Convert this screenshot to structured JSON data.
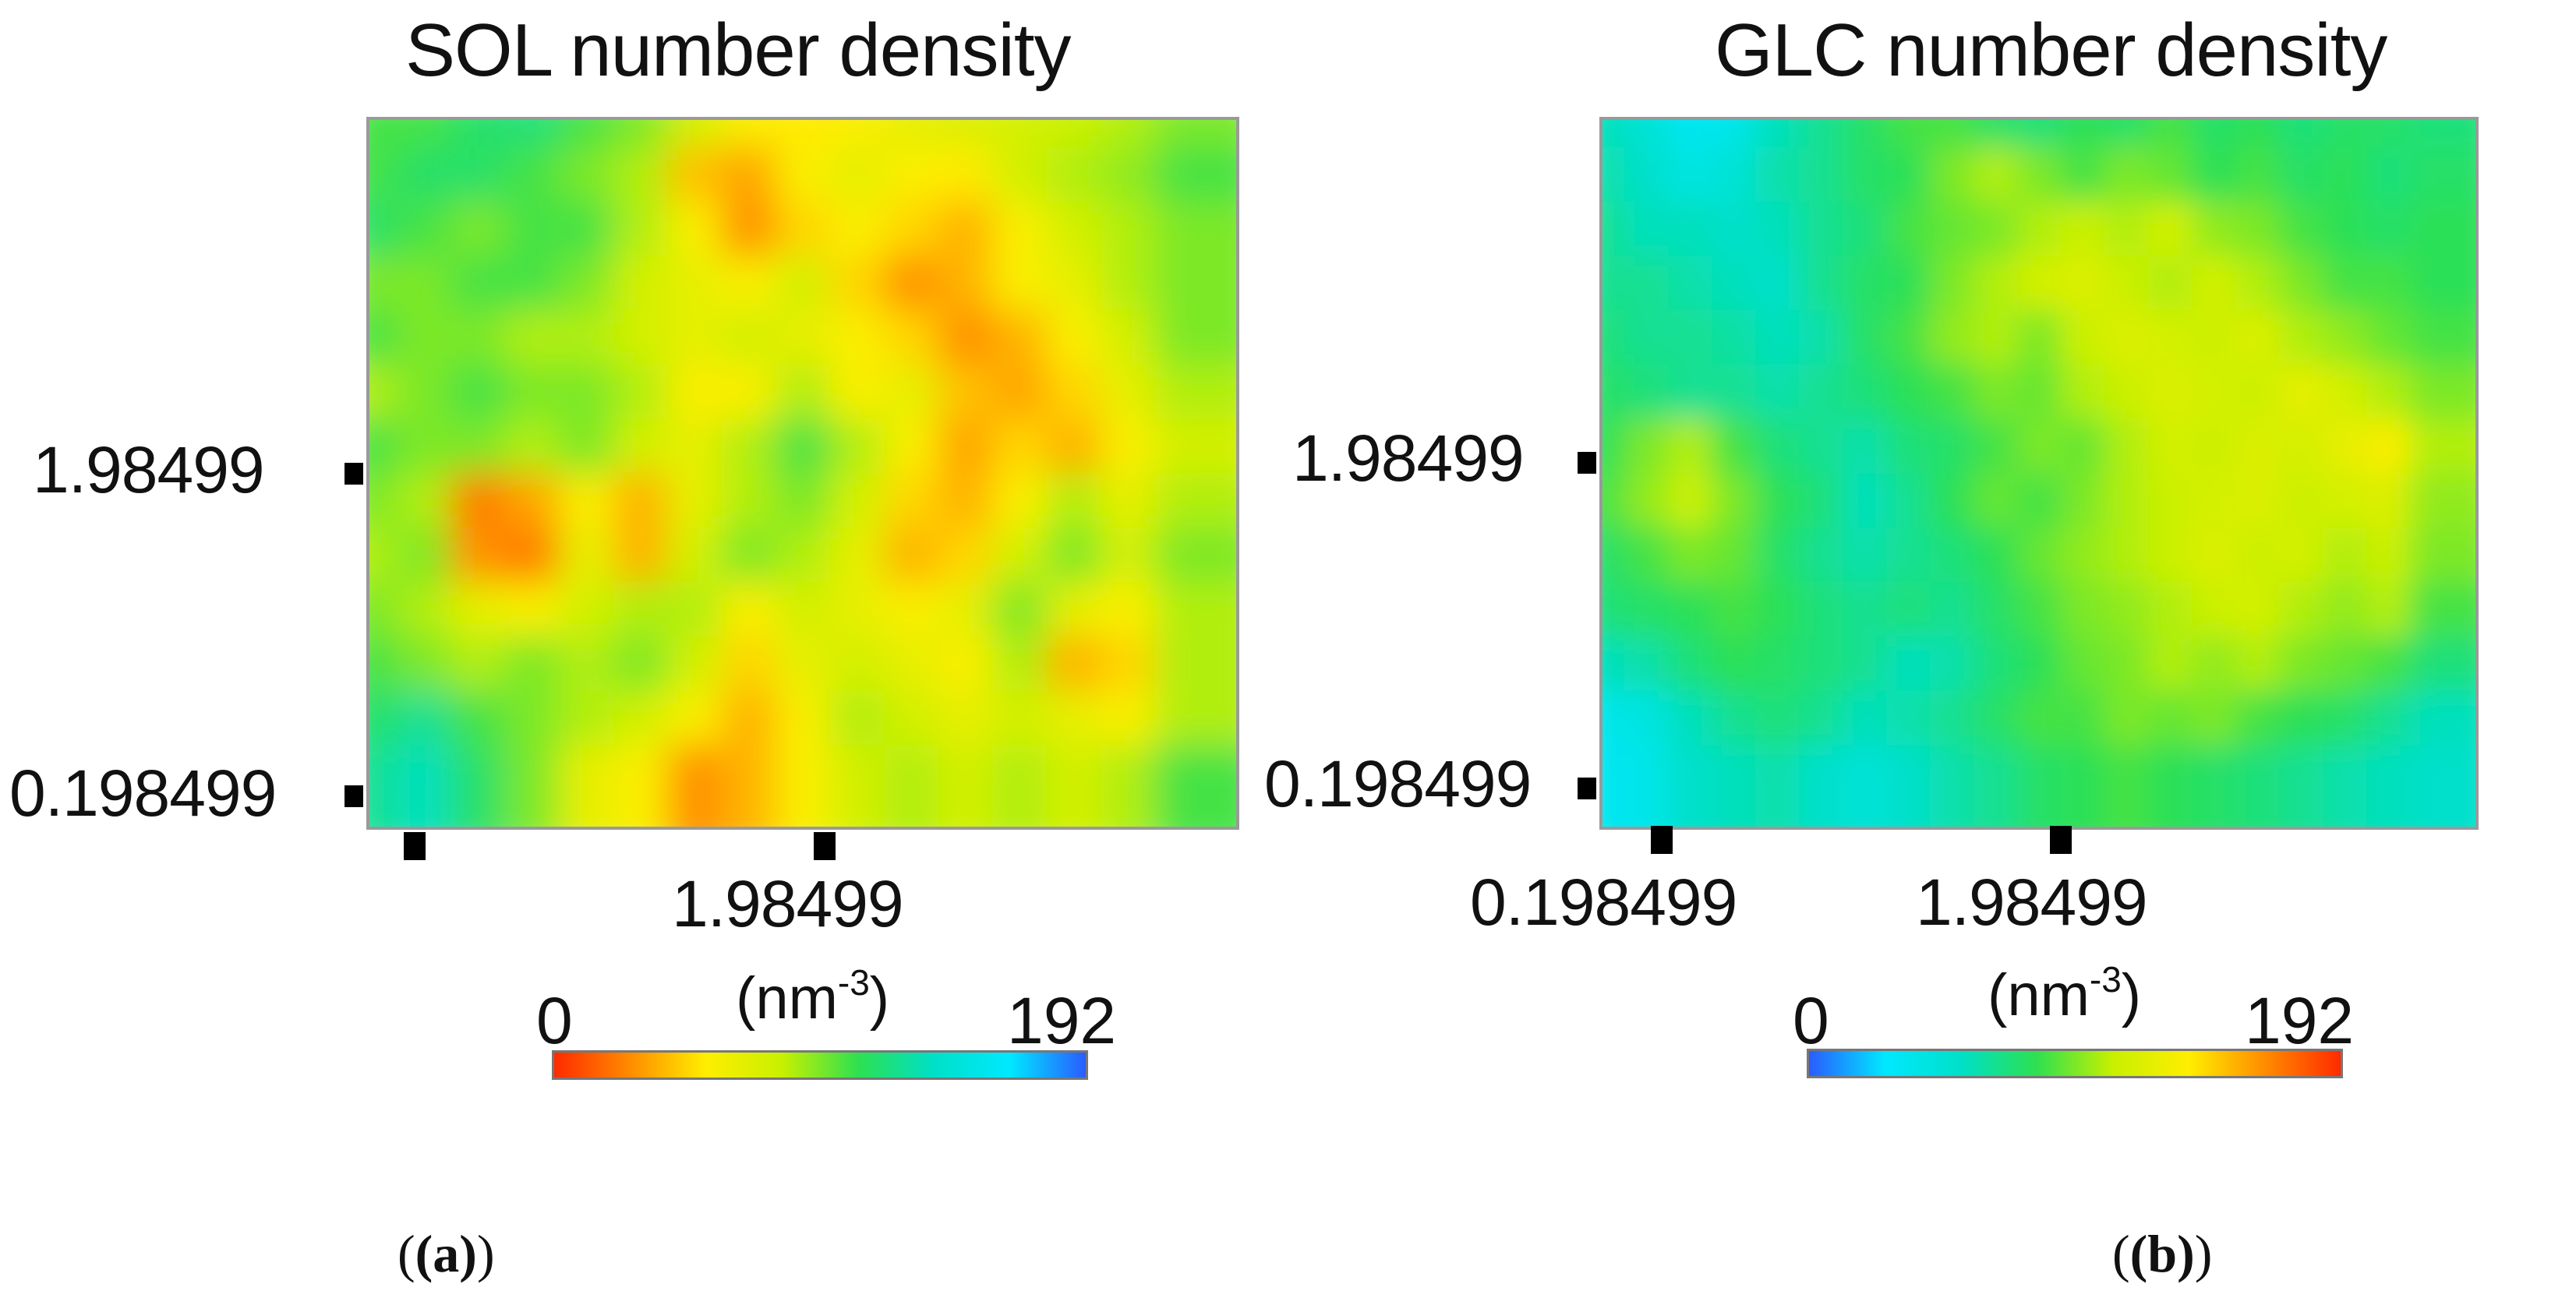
{
  "chart_data": [
    {
      "type": "heatmap",
      "panel": "(a)",
      "title": "SOL number density",
      "y_ticks": [
        "1.98499",
        "0.198499"
      ],
      "x_ticks": [
        "",
        "1.98499"
      ],
      "colorbar": {
        "unit": "nm",
        "unit_exp": "-3",
        "min_label": "0",
        "max_label": "192",
        "range": [
          0,
          192
        ],
        "colors": [
          "#ff2a00",
          "#ff8c00",
          "#ffee00",
          "#c8f000",
          "#2ee050",
          "#00e0c8",
          "#00e8ff",
          "#2a5cff"
        ]
      },
      "grid": [
        [
          0.55,
          0.55,
          0.6,
          0.62,
          0.55,
          0.5,
          0.4,
          0.3,
          0.28,
          0.3,
          0.35,
          0.38,
          0.4,
          0.42,
          0.45,
          0.5
        ],
        [
          0.55,
          0.6,
          0.6,
          0.55,
          0.5,
          0.45,
          0.22,
          0.18,
          0.3,
          0.35,
          0.3,
          0.28,
          0.4,
          0.45,
          0.48,
          0.55
        ],
        [
          0.6,
          0.55,
          0.5,
          0.55,
          0.55,
          0.45,
          0.3,
          0.15,
          0.25,
          0.3,
          0.25,
          0.2,
          0.3,
          0.4,
          0.45,
          0.5
        ],
        [
          0.5,
          0.5,
          0.55,
          0.55,
          0.5,
          0.4,
          0.35,
          0.3,
          0.4,
          0.25,
          0.15,
          0.2,
          0.3,
          0.35,
          0.45,
          0.5
        ],
        [
          0.55,
          0.5,
          0.5,
          0.45,
          0.45,
          0.4,
          0.35,
          0.4,
          0.35,
          0.3,
          0.25,
          0.15,
          0.2,
          0.3,
          0.4,
          0.5
        ],
        [
          0.45,
          0.5,
          0.55,
          0.5,
          0.5,
          0.45,
          0.3,
          0.3,
          0.45,
          0.3,
          0.35,
          0.22,
          0.18,
          0.25,
          0.35,
          0.45
        ],
        [
          0.55,
          0.5,
          0.5,
          0.45,
          0.5,
          0.4,
          0.35,
          0.45,
          0.55,
          0.45,
          0.3,
          0.18,
          0.25,
          0.2,
          0.3,
          0.4
        ],
        [
          0.5,
          0.45,
          0.12,
          0.18,
          0.3,
          0.2,
          0.35,
          0.45,
          0.5,
          0.4,
          0.25,
          0.2,
          0.3,
          0.45,
          0.35,
          0.45
        ],
        [
          0.45,
          0.5,
          0.15,
          0.12,
          0.35,
          0.2,
          0.4,
          0.5,
          0.45,
          0.35,
          0.2,
          0.25,
          0.4,
          0.5,
          0.4,
          0.5
        ],
        [
          0.5,
          0.45,
          0.35,
          0.3,
          0.4,
          0.45,
          0.45,
          0.3,
          0.4,
          0.35,
          0.3,
          0.35,
          0.5,
          0.35,
          0.3,
          0.45
        ],
        [
          0.55,
          0.5,
          0.45,
          0.5,
          0.45,
          0.5,
          0.4,
          0.25,
          0.35,
          0.4,
          0.35,
          0.3,
          0.45,
          0.2,
          0.25,
          0.45
        ],
        [
          0.6,
          0.65,
          0.55,
          0.5,
          0.45,
          0.4,
          0.3,
          0.2,
          0.3,
          0.45,
          0.4,
          0.35,
          0.4,
          0.35,
          0.3,
          0.45
        ],
        [
          0.65,
          0.7,
          0.6,
          0.5,
          0.35,
          0.3,
          0.15,
          0.2,
          0.3,
          0.4,
          0.45,
          0.4,
          0.45,
          0.4,
          0.45,
          0.55
        ]
      ]
    },
    {
      "type": "heatmap",
      "panel": "(b)",
      "title": "GLC number density",
      "y_ticks": [
        "1.98499",
        "0.198499"
      ],
      "x_ticks": [
        "0.198499",
        "1.98499"
      ],
      "colorbar": {
        "unit": "nm",
        "unit_exp": "-3",
        "min_label": "0",
        "max_label": "192",
        "range": [
          0,
          192
        ],
        "colors": [
          "#2a5cff",
          "#00e8ff",
          "#00e0c8",
          "#2ee050",
          "#c8f000",
          "#ffee00",
          "#ff8c00",
          "#ff2a00"
        ]
      },
      "grid": [
        [
          0.3,
          0.25,
          0.18,
          0.2,
          0.3,
          0.35,
          0.4,
          0.45,
          0.45,
          0.4,
          0.38,
          0.42,
          0.4,
          0.45,
          0.4,
          0.42,
          0.38,
          0.4,
          0.4,
          0.38
        ],
        [
          0.32,
          0.28,
          0.22,
          0.25,
          0.32,
          0.35,
          0.4,
          0.42,
          0.5,
          0.55,
          0.5,
          0.45,
          0.5,
          0.48,
          0.42,
          0.45,
          0.4,
          0.42,
          0.38,
          0.4
        ],
        [
          0.35,
          0.3,
          0.3,
          0.28,
          0.3,
          0.35,
          0.38,
          0.45,
          0.48,
          0.5,
          0.55,
          0.58,
          0.55,
          0.6,
          0.52,
          0.5,
          0.45,
          0.42,
          0.4,
          0.42
        ],
        [
          0.35,
          0.35,
          0.32,
          0.3,
          0.28,
          0.35,
          0.4,
          0.42,
          0.5,
          0.55,
          0.6,
          0.62,
          0.58,
          0.55,
          0.6,
          0.55,
          0.5,
          0.45,
          0.45,
          0.42
        ],
        [
          0.38,
          0.35,
          0.35,
          0.33,
          0.3,
          0.32,
          0.4,
          0.45,
          0.52,
          0.55,
          0.5,
          0.58,
          0.62,
          0.6,
          0.58,
          0.62,
          0.55,
          0.52,
          0.48,
          0.45
        ],
        [
          0.4,
          0.38,
          0.35,
          0.35,
          0.32,
          0.35,
          0.38,
          0.42,
          0.45,
          0.5,
          0.48,
          0.55,
          0.58,
          0.62,
          0.6,
          0.58,
          0.65,
          0.6,
          0.55,
          0.5
        ],
        [
          0.42,
          0.5,
          0.55,
          0.45,
          0.38,
          0.35,
          0.32,
          0.38,
          0.4,
          0.45,
          0.5,
          0.48,
          0.55,
          0.6,
          0.58,
          0.62,
          0.6,
          0.65,
          0.7,
          0.55
        ],
        [
          0.45,
          0.52,
          0.58,
          0.5,
          0.42,
          0.38,
          0.3,
          0.35,
          0.42,
          0.48,
          0.45,
          0.5,
          0.55,
          0.58,
          0.6,
          0.62,
          0.58,
          0.6,
          0.62,
          0.52
        ],
        [
          0.4,
          0.45,
          0.5,
          0.48,
          0.4,
          0.35,
          0.32,
          0.35,
          0.38,
          0.42,
          0.48,
          0.52,
          0.55,
          0.58,
          0.62,
          0.58,
          0.6,
          0.55,
          0.58,
          0.5
        ],
        [
          0.38,
          0.4,
          0.42,
          0.45,
          0.42,
          0.38,
          0.35,
          0.38,
          0.35,
          0.4,
          0.45,
          0.5,
          0.52,
          0.55,
          0.58,
          0.6,
          0.55,
          0.52,
          0.55,
          0.45
        ],
        [
          0.3,
          0.32,
          0.38,
          0.42,
          0.4,
          0.38,
          0.35,
          0.3,
          0.32,
          0.38,
          0.42,
          0.48,
          0.5,
          0.55,
          0.52,
          0.55,
          0.5,
          0.48,
          0.45,
          0.38
        ],
        [
          0.2,
          0.22,
          0.3,
          0.35,
          0.38,
          0.35,
          0.3,
          0.32,
          0.35,
          0.4,
          0.45,
          0.45,
          0.5,
          0.48,
          0.5,
          0.45,
          0.42,
          0.4,
          0.35,
          0.3
        ],
        [
          0.18,
          0.2,
          0.28,
          0.3,
          0.32,
          0.28,
          0.25,
          0.28,
          0.32,
          0.35,
          0.4,
          0.42,
          0.45,
          0.42,
          0.4,
          0.38,
          0.35,
          0.32,
          0.3,
          0.28
        ]
      ]
    }
  ],
  "panel_labels": [
    "(a)",
    "(b)"
  ]
}
